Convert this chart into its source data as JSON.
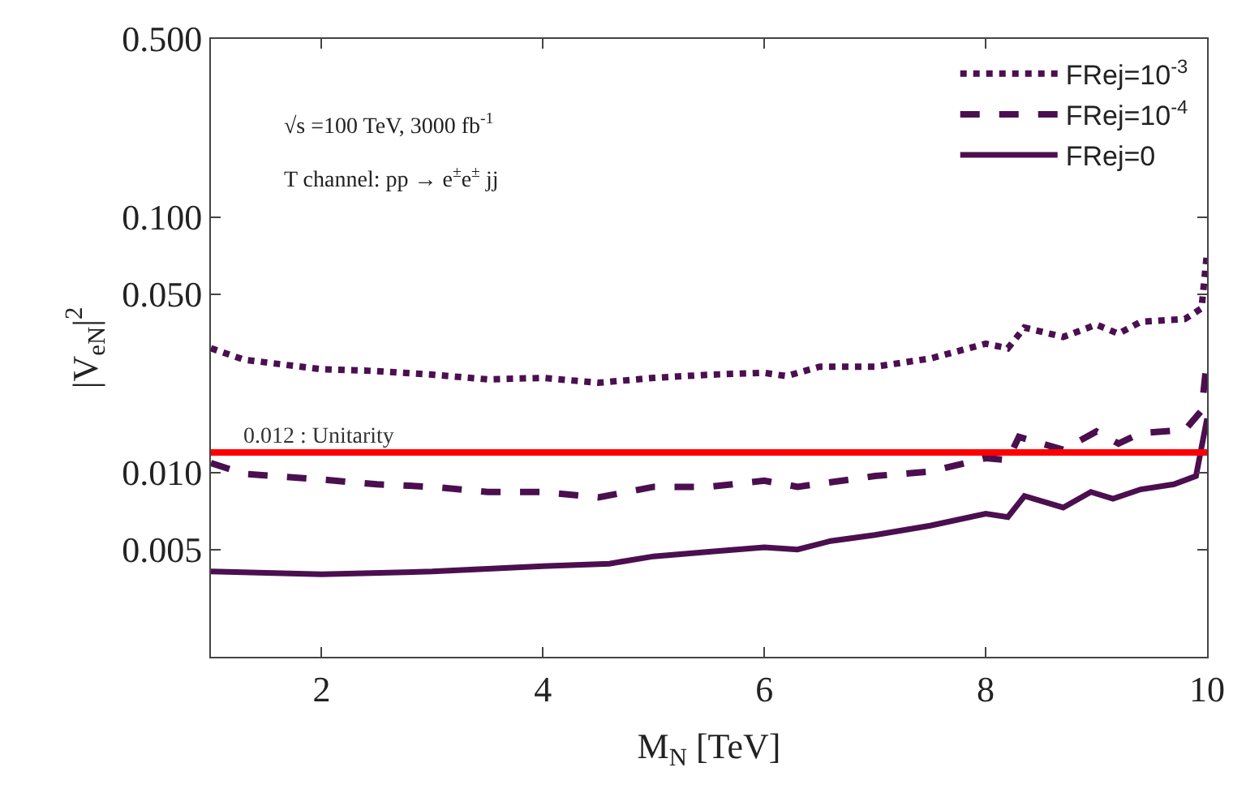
{
  "chart_data": {
    "type": "line",
    "xlabel": "M$_{N}$ [TeV]",
    "ylabel": "|V$_{eN}$|$^{2}$",
    "log": "y",
    "xlim": [
      1,
      10
    ],
    "xticks": [
      2,
      4,
      6,
      8,
      10
    ],
    "ylim": [
      0.0019,
      0.5
    ],
    "yticks": [
      {
        "value": 0.005,
        "label": "0.005"
      },
      {
        "value": 0.01,
        "label": "0.010"
      },
      {
        "value": 0.05,
        "label": "0.050"
      },
      {
        "value": 0.1,
        "label": "0.100"
      },
      {
        "value": 0.5,
        "label": "0.500"
      }
    ],
    "legend": "top right",
    "annotations": [
      "√s =100 TeV, 3000 fb$^{-1}$",
      "T channel: pp → e$^{±}$e$^{±}$ jj"
    ],
    "ref_lines": [
      {
        "axis": "y",
        "value": 0.012,
        "label": "0.012 : Unitarity",
        "color": "#ff0000",
        "line_style": "solid"
      }
    ],
    "series": [
      {
        "name": "FRej=10$^{-3}$",
        "color": "#4b0f50",
        "line_style": "dotted",
        "x": [
          1,
          1.3,
          2,
          2.5,
          3,
          3.5,
          4,
          4.5,
          5,
          5.5,
          6,
          6.2,
          6.5,
          7,
          7.5,
          8,
          8.2,
          8.35,
          8.7,
          9,
          9.2,
          9.4,
          9.8,
          9.95,
          10
        ],
        "values": [
          0.0307,
          0.0277,
          0.0254,
          0.025,
          0.0242,
          0.0232,
          0.0235,
          0.0225,
          0.0235,
          0.0242,
          0.0246,
          0.0239,
          0.026,
          0.026,
          0.028,
          0.032,
          0.0307,
          0.037,
          0.034,
          0.038,
          0.035,
          0.039,
          0.04,
          0.044,
          0.073
        ]
      },
      {
        "name": "FRej=10$^{-4}$",
        "color": "#4b0f50",
        "line_style": "dashed",
        "x": [
          1,
          1.3,
          2,
          2.5,
          3,
          3.5,
          4,
          4.5,
          5,
          5.5,
          6,
          6.3,
          7,
          7.5,
          8,
          8.2,
          8.3,
          8.7,
          9,
          9.2,
          9.4,
          9.8,
          9.95,
          10
        ],
        "values": [
          0.0109,
          0.0099,
          0.0094,
          0.009,
          0.0088,
          0.0084,
          0.0084,
          0.008,
          0.0088,
          0.0088,
          0.0093,
          0.0088,
          0.0097,
          0.0101,
          0.0114,
          0.0112,
          0.0138,
          0.0123,
          0.0145,
          0.013,
          0.0143,
          0.0147,
          0.0175,
          0.028
        ]
      },
      {
        "name": "FRej=0",
        "color": "#4b0f50",
        "line_style": "solid",
        "x": [
          1,
          2,
          3,
          4,
          4.6,
          5,
          5.5,
          6,
          6.3,
          6.6,
          7,
          7.5,
          8,
          8.2,
          8.35,
          8.7,
          8.95,
          9.15,
          9.4,
          9.7,
          9.9,
          10
        ],
        "values": [
          0.0041,
          0.004,
          0.0041,
          0.0043,
          0.0044,
          0.0047,
          0.0049,
          0.0051,
          0.005,
          0.0054,
          0.0057,
          0.0062,
          0.0069,
          0.0067,
          0.0081,
          0.0073,
          0.0084,
          0.0079,
          0.0086,
          0.009,
          0.0097,
          0.0163
        ]
      }
    ]
  }
}
